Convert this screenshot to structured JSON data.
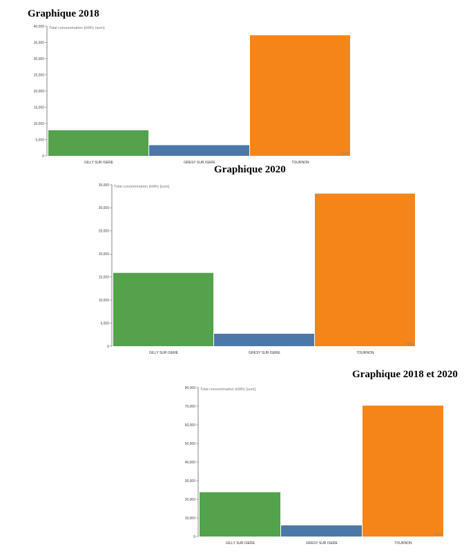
{
  "headings": [
    "Graphique 2018",
    "Graphique 2020",
    "Graphique 2018 et 2020"
  ],
  "chart_data": [
    {
      "type": "bar",
      "title": "Graphique 2018",
      "ylabel": "Total consommation (kWh) (sum)",
      "categories": [
        "GILLY SUR ISERE",
        "GRESY SUR ISERE",
        "TOURNON"
      ],
      "values": [
        7900,
        3300,
        37200
      ],
      "ylim": [
        0,
        40000
      ],
      "yticks": [
        "0",
        "5,000",
        "10,000",
        "15,000",
        "20,000",
        "25,000",
        "30,000",
        "35,000",
        "40,000"
      ],
      "colors": [
        "#54a24b",
        "#4c78a8",
        "#f58518"
      ],
      "grid": false,
      "watermark": "Vega"
    },
    {
      "type": "bar",
      "title": "Graphique 2020",
      "ylabel": "Total consommation (kWh) [sum]",
      "categories": [
        "GILLY SUR ISERE",
        "GRESY SUR ISERE",
        "TOURNON"
      ],
      "values": [
        15900,
        2700,
        33100
      ],
      "ylim": [
        0,
        35000
      ],
      "yticks": [
        "0",
        "5,000",
        "10,000",
        "15,000",
        "20,000",
        "25,000",
        "30,000",
        "35,000"
      ],
      "colors": [
        "#54a24b",
        "#4c78a8",
        "#f58518"
      ],
      "grid": false,
      "watermark": "Vega"
    },
    {
      "type": "bar",
      "title": "Graphique 2018 et 2020",
      "ylabel": "Total consommation (kWh) [sum]",
      "categories": [
        "GILLY SUR ISERE",
        "GRESY SUR ISERE",
        "TOURNON"
      ],
      "values": [
        23800,
        6000,
        70300
      ],
      "ylim": [
        0,
        80000
      ],
      "yticks": [
        "0",
        "10,000",
        "20,000",
        "30,000",
        "40,000",
        "50,000",
        "60,000",
        "70,000",
        "80,000"
      ],
      "colors": [
        "#54a24b",
        "#4c78a8",
        "#f58518"
      ],
      "grid": false,
      "watermark": "Vega"
    }
  ]
}
